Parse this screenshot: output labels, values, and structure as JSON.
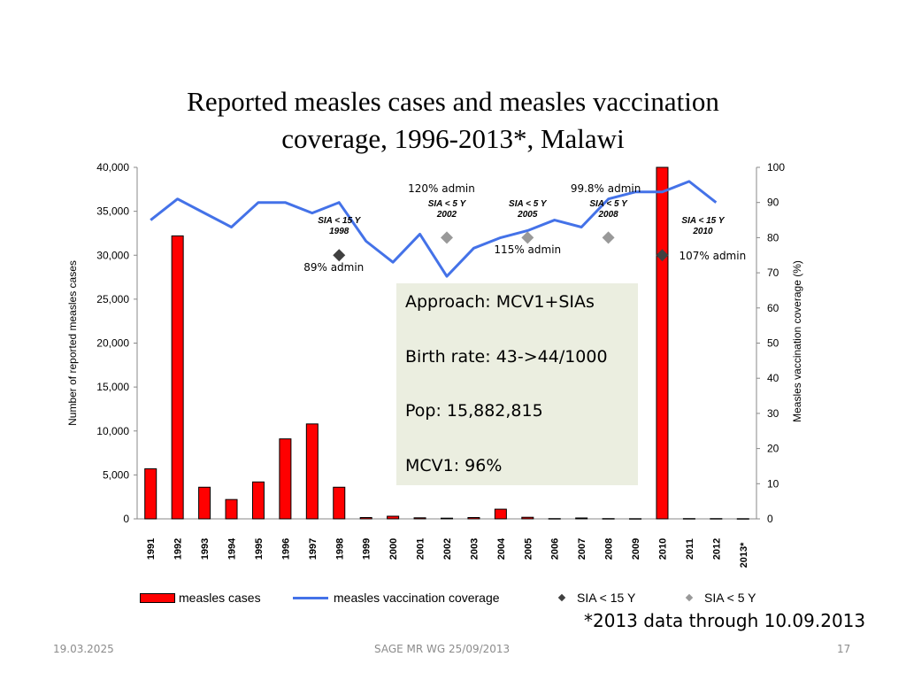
{
  "chart_data": {
    "type": "bar",
    "title": "Reported measles cases and measles vaccination coverage, 1996-2013*, Malawi",
    "title_lines": [
      "Reported measles cases and measles vaccination",
      "coverage, 1996-2013*, Malawi"
    ],
    "categories": [
      "1991",
      "1992",
      "1993",
      "1994",
      "1995",
      "1996",
      "1997",
      "1998",
      "1999",
      "2000",
      "2001",
      "2002",
      "2003",
      "2004",
      "2005",
      "2006",
      "2007",
      "2008",
      "2009",
      "2010",
      "2011",
      "2012",
      "2013*"
    ],
    "series": [
      {
        "name": "measles cases",
        "type": "bar",
        "axis": "left",
        "color": "#ff0000",
        "values": [
          5700,
          32200,
          3600,
          2200,
          4200,
          9100,
          10800,
          3600,
          150,
          300,
          120,
          80,
          150,
          1100,
          180,
          30,
          100,
          30,
          20,
          40000,
          30,
          30,
          20
        ]
      },
      {
        "name": "measles vaccination coverage",
        "type": "line",
        "axis": "right",
        "color": "#4472e8",
        "values": [
          85,
          91,
          87,
          83,
          90,
          90,
          87,
          90,
          79,
          73,
          81,
          69,
          77,
          80,
          82,
          85,
          83,
          91,
          93,
          93,
          96,
          90,
          null
        ]
      },
      {
        "name": "SIA < 15 Y",
        "type": "marker",
        "axis": "right",
        "color": "#404040",
        "points": [
          {
            "x": "1998",
            "y": 75
          },
          {
            "x": "2010",
            "y": 75
          }
        ]
      },
      {
        "name": "SIA < 5 Y",
        "type": "marker",
        "axis": "right",
        "color": "#999999",
        "points": [
          {
            "x": "2002",
            "y": 80
          },
          {
            "x": "2005",
            "y": 80
          },
          {
            "x": "2008",
            "y": 80
          }
        ]
      }
    ],
    "ylabel": "Number of reported measles cases",
    "ylim": [
      0,
      40000
    ],
    "yticks": [
      "0",
      "5,000",
      "10,000",
      "15,000",
      "20,000",
      "25,000",
      "30,000",
      "35,000",
      "40,000"
    ],
    "y2label": "Measles vaccination coverage (%)",
    "y2lim": [
      0,
      100
    ],
    "y2ticks": [
      "0",
      "10",
      "20",
      "30",
      "40",
      "50",
      "60",
      "70",
      "80",
      "90",
      "100"
    ],
    "legend_position": "bottom",
    "grid": false,
    "annotations": {
      "sia_labels": [
        {
          "x": "1998",
          "lines": [
            "SIA < 15 Y",
            "1998"
          ]
        },
        {
          "x": "2002",
          "lines": [
            "SIA < 5 Y",
            "2002"
          ]
        },
        {
          "x": "2005",
          "lines": [
            "SIA < 5 Y",
            "2005"
          ]
        },
        {
          "x": "2008",
          "lines": [
            "SIA < 5 Y",
            "2008"
          ]
        },
        {
          "x": "2010",
          "lines": [
            "SIA < 15 Y",
            "2010"
          ]
        }
      ],
      "admin_labels": [
        {
          "x": "1998",
          "text": "89% admin"
        },
        {
          "x": "2002",
          "text": "120% admin"
        },
        {
          "x": "2005",
          "text": "115% admin"
        },
        {
          "x": "2008",
          "text": "99.8% admin"
        },
        {
          "x": "2010",
          "text": "107% admin"
        }
      ]
    }
  },
  "infobox": {
    "lines": [
      "Approach: MCV1+SIAs",
      "Birth rate: 43->44/1000",
      "Pop: 15,882,815",
      "MCV1: 96%"
    ]
  },
  "footnote": "*2013 data through 10.09.2013",
  "footer": {
    "date": "19.03.2025",
    "center": "SAGE MR WG 25/09/2013",
    "page": "17"
  }
}
